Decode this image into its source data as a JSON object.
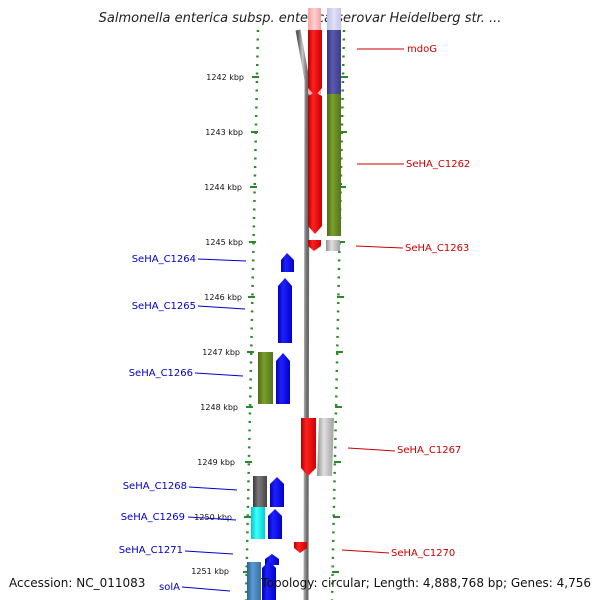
{
  "title": "Salmonella enterica subsp. enterica serovar Heidelberg str. ...",
  "footer": {
    "accession": "Accession: NC_011083",
    "topology": "Topology: circular; Length: 4,888,768 bp; Genes: 4,756"
  },
  "colors": {
    "plus_strand_label": "#cc0000",
    "minus_strand_label": "#0000cc",
    "dotted_boundary": "#2a8a2a",
    "backbone": "#8a8a8a",
    "red_gene": "#ff0000",
    "blue_gene": "#0000ff",
    "olive_block": "#6b8e23",
    "purple_block": "#4b4b9b",
    "gray_block": "#bdbdbd",
    "cyan_block": "#00ffff",
    "steel_block": "#4682b4"
  },
  "scale_ticks": [
    "1242 kbp",
    "1243 kbp",
    "1244 kbp",
    "1245 kbp",
    "1246 kbp",
    "1247 kbp",
    "1248 kbp",
    "1249 kbp",
    "1250 kbp",
    "1251 kbp"
  ],
  "genes_right": [
    {
      "label": "mdoG"
    },
    {
      "label": "SeHA_C1262"
    },
    {
      "label": "SeHA_C1263"
    },
    {
      "label": "SeHA_C1267"
    },
    {
      "label": "SeHA_C1270"
    }
  ],
  "genes_left": [
    {
      "label": "SeHA_C1264"
    },
    {
      "label": "SeHA_C1265"
    },
    {
      "label": "SeHA_C1266"
    },
    {
      "label": "SeHA_C1268"
    },
    {
      "label": "SeHA_C1269"
    },
    {
      "label": "SeHA_C1271"
    },
    {
      "label": "solA"
    }
  ]
}
